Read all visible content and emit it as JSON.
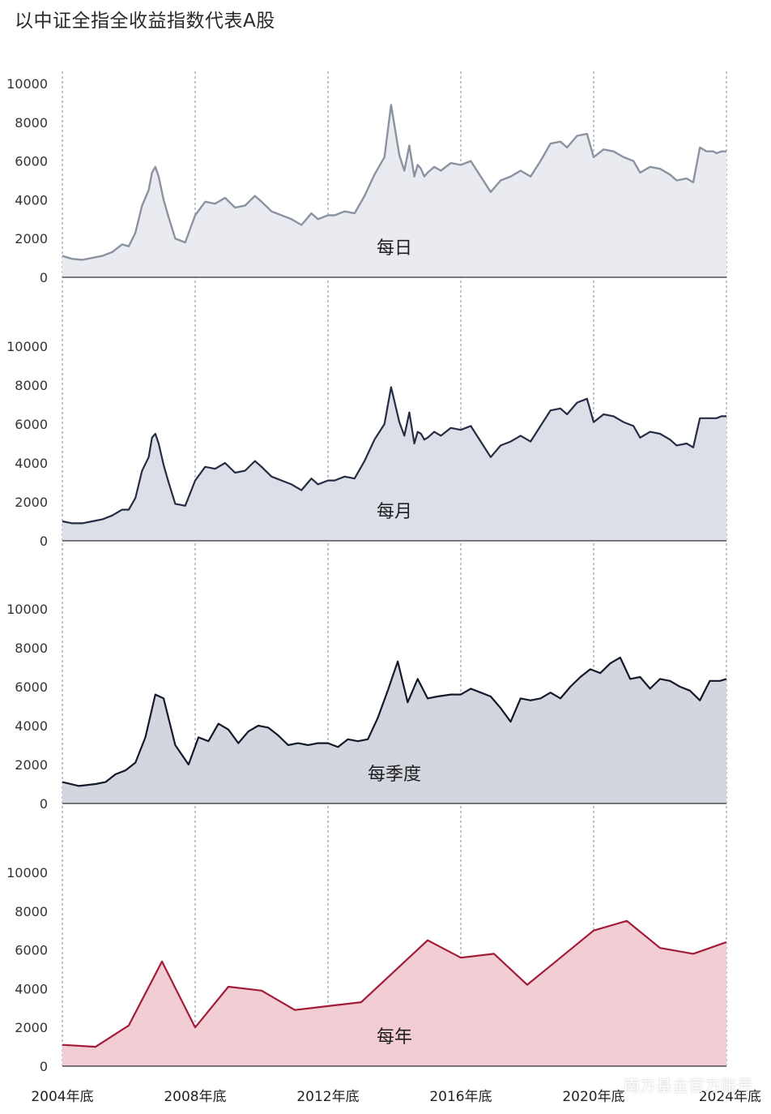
{
  "title": "以中证全指全收益指数代表A股",
  "watermark": "南方基金官方账号",
  "chart_data": [
    {
      "type": "area",
      "label": "每日",
      "ylim": [
        0,
        10000
      ],
      "yticks": [
        0,
        2000,
        4000,
        6000,
        8000,
        10000
      ],
      "color": "#8b93a1",
      "fill": "#e9ebf1",
      "x": [
        2004.9,
        2005.2,
        2005.5,
        2005.8,
        2006.1,
        2006.4,
        2006.7,
        2006.9,
        2007.1,
        2007.3,
        2007.5,
        2007.6,
        2007.7,
        2007.8,
        2007.95,
        2008.1,
        2008.3,
        2008.6,
        2008.9,
        2009.2,
        2009.5,
        2009.8,
        2010.1,
        2010.4,
        2010.7,
        2010.9,
        2011.2,
        2011.5,
        2011.8,
        2012.1,
        2012.4,
        2012.6,
        2012.9,
        2013.1,
        2013.4,
        2013.7,
        2014.0,
        2014.3,
        2014.6,
        2014.8,
        2015.05,
        2015.2,
        2015.35,
        2015.5,
        2015.6,
        2015.7,
        2015.8,
        2015.9,
        2016.1,
        2016.3,
        2016.6,
        2016.9,
        2017.2,
        2017.5,
        2017.8,
        2018.1,
        2018.4,
        2018.7,
        2019.0,
        2019.3,
        2019.6,
        2019.9,
        2020.1,
        2020.4,
        2020.7,
        2020.9,
        2021.2,
        2021.5,
        2021.8,
        2022.1,
        2022.3,
        2022.6,
        2022.9,
        2023.2,
        2023.4,
        2023.7,
        2023.9,
        2024.1,
        2024.3,
        2024.5,
        2024.6,
        2024.75,
        2024.9
      ],
      "y": [
        1100,
        950,
        900,
        1000,
        1100,
        1300,
        1700,
        1600,
        2300,
        3700,
        4500,
        5400,
        5700,
        5200,
        4000,
        3100,
        2000,
        1800,
        3200,
        3900,
        3800,
        4100,
        3600,
        3700,
        4200,
        3900,
        3400,
        3200,
        3000,
        2700,
        3300,
        3000,
        3200,
        3200,
        3400,
        3300,
        4200,
        5300,
        6200,
        8900,
        6300,
        5500,
        6800,
        5200,
        5800,
        5600,
        5200,
        5400,
        5700,
        5500,
        5900,
        5800,
        6000,
        5200,
        4400,
        5000,
        5200,
        5500,
        5200,
        6000,
        6900,
        7000,
        6700,
        7300,
        7400,
        6200,
        6600,
        6500,
        6200,
        6000,
        5400,
        5700,
        5600,
        5300,
        5000,
        5100,
        4900,
        6700,
        6500,
        6500,
        6400,
        6500,
        6500
      ]
    },
    {
      "type": "area",
      "label": "每月",
      "ylim": [
        0,
        10000
      ],
      "yticks": [
        0,
        2000,
        4000,
        6000,
        8000,
        10000
      ],
      "color": "#262c44",
      "fill": "#dcdfe8",
      "x": [
        2004.9,
        2005.2,
        2005.5,
        2005.8,
        2006.1,
        2006.4,
        2006.7,
        2006.9,
        2007.1,
        2007.3,
        2007.5,
        2007.6,
        2007.7,
        2007.8,
        2007.95,
        2008.1,
        2008.3,
        2008.6,
        2008.9,
        2009.2,
        2009.5,
        2009.8,
        2010.1,
        2010.4,
        2010.7,
        2010.9,
        2011.2,
        2011.5,
        2011.8,
        2012.1,
        2012.4,
        2012.6,
        2012.9,
        2013.1,
        2013.4,
        2013.7,
        2014.0,
        2014.3,
        2014.6,
        2014.8,
        2015.05,
        2015.2,
        2015.35,
        2015.5,
        2015.6,
        2015.7,
        2015.8,
        2015.9,
        2016.1,
        2016.3,
        2016.6,
        2016.9,
        2017.2,
        2017.5,
        2017.8,
        2018.1,
        2018.4,
        2018.7,
        2019.0,
        2019.3,
        2019.6,
        2019.9,
        2020.1,
        2020.4,
        2020.7,
        2020.9,
        2021.2,
        2021.5,
        2021.8,
        2022.1,
        2022.3,
        2022.6,
        2022.9,
        2023.2,
        2023.4,
        2023.7,
        2023.9,
        2024.1,
        2024.3,
        2024.5,
        2024.6,
        2024.75,
        2024.9
      ],
      "y": [
        1000,
        900,
        900,
        1000,
        1100,
        1300,
        1600,
        1600,
        2200,
        3600,
        4300,
        5300,
        5500,
        5000,
        3900,
        3000,
        1900,
        1800,
        3100,
        3800,
        3700,
        4000,
        3500,
        3600,
        4100,
        3800,
        3300,
        3100,
        2900,
        2600,
        3200,
        2900,
        3100,
        3100,
        3300,
        3200,
        4100,
        5200,
        6000,
        7900,
        6100,
        5400,
        6600,
        5000,
        5600,
        5500,
        5200,
        5300,
        5600,
        5400,
        5800,
        5700,
        5900,
        5100,
        4300,
        4900,
        5100,
        5400,
        5100,
        5900,
        6700,
        6800,
        6500,
        7100,
        7300,
        6100,
        6500,
        6400,
        6100,
        5900,
        5300,
        5600,
        5500,
        5200,
        4900,
        5000,
        4800,
        6300,
        6300,
        6300,
        6300,
        6400,
        6400
      ]
    },
    {
      "type": "area",
      "label": "每季度",
      "ylim": [
        0,
        10000
      ],
      "yticks": [
        0,
        2000,
        4000,
        6000,
        8000,
        10000
      ],
      "color": "#14192b",
      "fill": "#d3d6df",
      "x": [
        2004.9,
        2005.4,
        2005.9,
        2006.2,
        2006.5,
        2006.8,
        2007.1,
        2007.4,
        2007.7,
        2007.95,
        2008.3,
        2008.7,
        2009.0,
        2009.3,
        2009.6,
        2009.9,
        2010.2,
        2010.5,
        2010.8,
        2011.1,
        2011.4,
        2011.7,
        2012.0,
        2012.3,
        2012.6,
        2012.9,
        2013.2,
        2013.5,
        2013.8,
        2014.1,
        2014.4,
        2014.7,
        2015.0,
        2015.3,
        2015.6,
        2015.9,
        2016.2,
        2016.6,
        2016.9,
        2017.2,
        2017.5,
        2017.8,
        2018.1,
        2018.4,
        2018.7,
        2019.0,
        2019.3,
        2019.6,
        2019.9,
        2020.2,
        2020.5,
        2020.8,
        2021.1,
        2021.4,
        2021.7,
        2022.0,
        2022.3,
        2022.6,
        2022.9,
        2023.2,
        2023.5,
        2023.8,
        2024.1,
        2024.4,
        2024.7,
        2024.9
      ],
      "y": [
        1100,
        900,
        1000,
        1100,
        1500,
        1700,
        2100,
        3400,
        5600,
        5400,
        3000,
        2000,
        3400,
        3200,
        4100,
        3800,
        3100,
        3700,
        4000,
        3900,
        3500,
        3000,
        3100,
        3000,
        3100,
        3100,
        2900,
        3300,
        3200,
        3300,
        4400,
        5800,
        7300,
        5200,
        6400,
        5400,
        5500,
        5600,
        5600,
        5900,
        5700,
        5500,
        4900,
        4200,
        5400,
        5300,
        5400,
        5700,
        5400,
        6000,
        6500,
        6900,
        6700,
        7200,
        7500,
        6400,
        6500,
        5900,
        6400,
        6300,
        6000,
        5800,
        5300,
        6300,
        6300,
        6400
      ]
    },
    {
      "type": "area",
      "label": "每年",
      "ylim": [
        0,
        10000
      ],
      "yticks": [
        0,
        2000,
        4000,
        6000,
        8000,
        10000
      ],
      "color": "#a21c38",
      "fill": "#f3cdd4",
      "x": [
        2004.9,
        2005.9,
        2006.9,
        2007.9,
        2008.9,
        2009.9,
        2010.9,
        2011.9,
        2012.9,
        2013.9,
        2014.9,
        2015.9,
        2016.9,
        2017.9,
        2018.9,
        2019.9,
        2020.9,
        2021.9,
        2022.9,
        2023.9,
        2024.9
      ],
      "y": [
        1100,
        1000,
        2100,
        5400,
        2000,
        4100,
        3900,
        2900,
        3100,
        3300,
        4900,
        6500,
        5600,
        5800,
        4200,
        5600,
        7000,
        7500,
        6100,
        5800,
        6400
      ]
    }
  ],
  "x_axis": {
    "ticks": [
      2004.9,
      2008.9,
      2012.9,
      2016.9,
      2020.9,
      2024.9
    ],
    "tick_labels": [
      "2004年底",
      "2008年底",
      "2012年底",
      "2016年底",
      "2020年底",
      "2024年底"
    ]
  }
}
